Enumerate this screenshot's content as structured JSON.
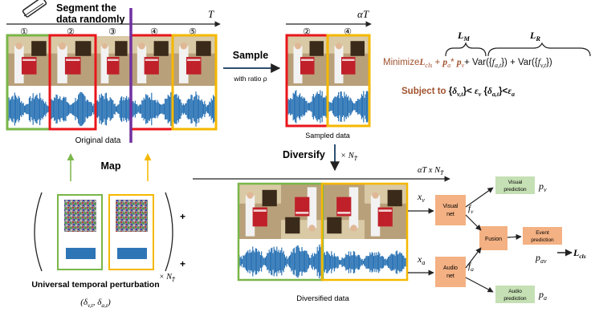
{
  "segment_label": [
    "Segment  the",
    "data randomly"
  ],
  "time_T": "T",
  "time_alphaT": "αT",
  "time_alphaT_N": "αT x N",
  "segments": [
    "①",
    "②",
    "③",
    "④",
    "⑤"
  ],
  "sampled_segments": [
    "②",
    "④"
  ],
  "sample_label": "Sample",
  "sample_ratio": "with ratio ρ",
  "original_data": "Original data",
  "sampled_data": "Sampled data",
  "diversified_data": "Diversified data",
  "diversify_label": "Diversify",
  "diversify_mult": "× N",
  "map_label": "Map",
  "universal_perturbation": "Universal temporal perturbation",
  "perturbation_pair": "(δ",
  "plus": "+",
  "times_N": "× N",
  "objective": {
    "minimize": "Minimize",
    "LM": "L",
    "LR": "L",
    "subject_to": "Subject to"
  },
  "nodes": {
    "visual_net": [
      "Visual",
      "net"
    ],
    "audio_net": [
      "Audio",
      "net"
    ],
    "fusion": "Fusion",
    "visual_prediction": [
      "Visual",
      "prediction"
    ],
    "event_prediction": [
      "Event",
      "prediction"
    ],
    "audio_prediction": [
      "Audio",
      "prediction"
    ]
  },
  "vars": {
    "xv": "x",
    "xa": "x",
    "fv": "f",
    "fa": "f",
    "pv": "p",
    "pav": "p",
    "pa": "p",
    "Lcls": "L"
  },
  "colors": {
    "green": "#7ab648",
    "red": "#e8161b",
    "orange": "#f5b800",
    "purple": "#7030a0",
    "brown": "#a0522d",
    "peach": "#f4b183",
    "lightgreen": "#c5e0b4",
    "wave": "#2e75b6"
  }
}
